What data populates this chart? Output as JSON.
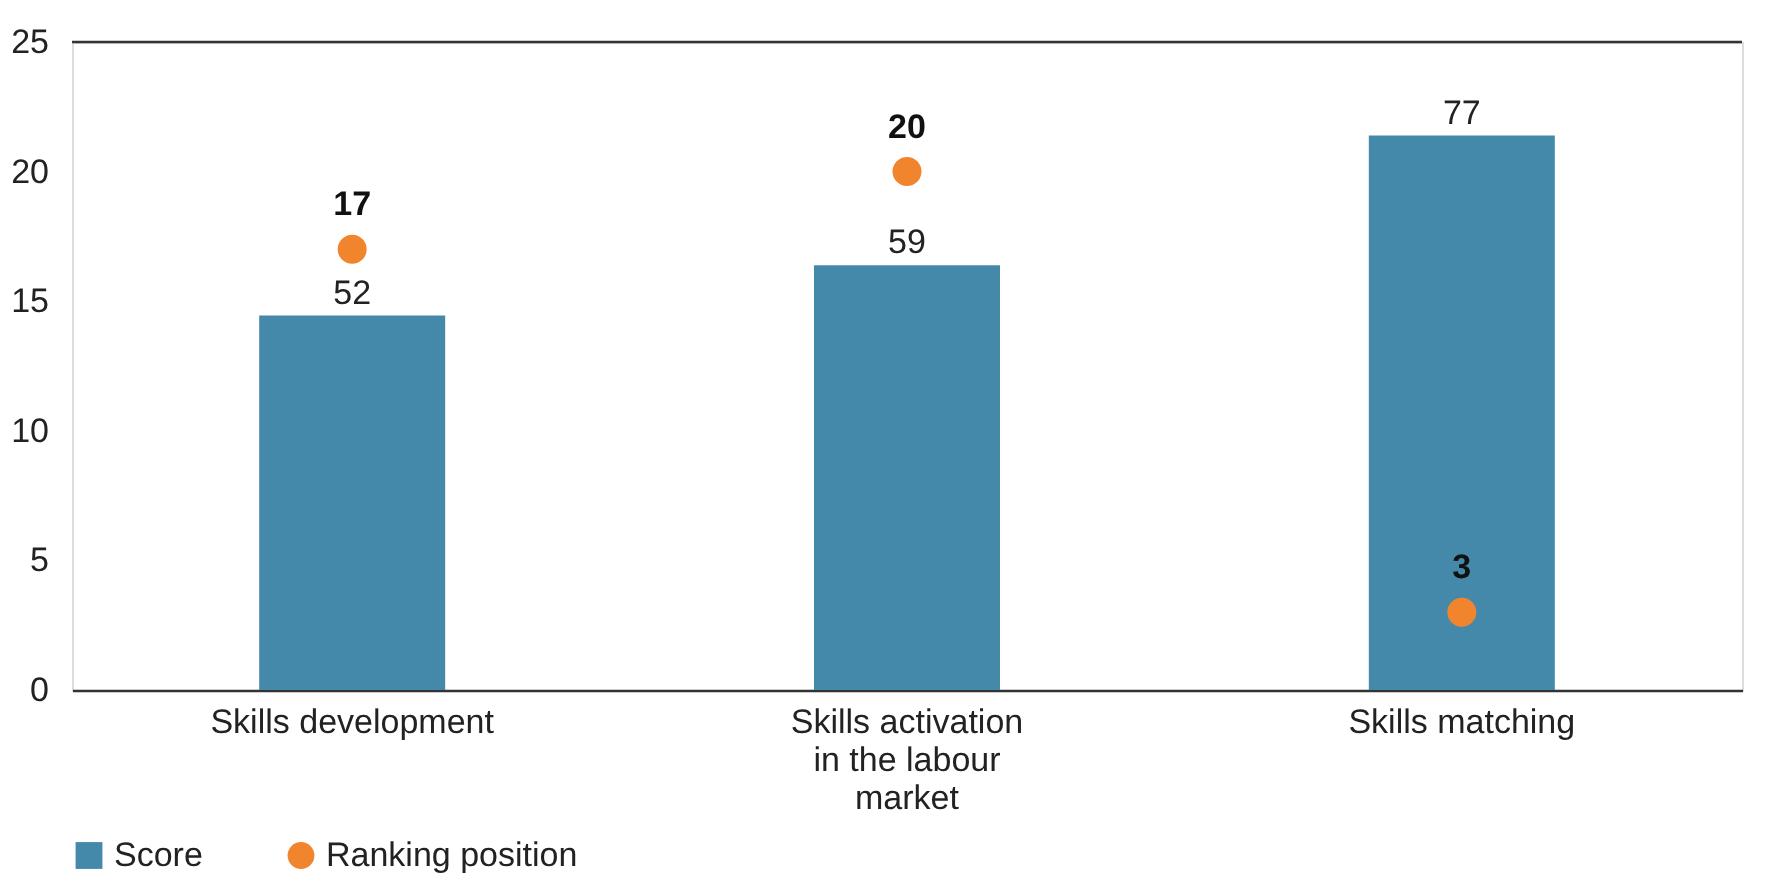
{
  "chart_data": {
    "type": "bar",
    "categories": [
      "Skills development",
      "Skills activation in the labour market",
      "Skills matching"
    ],
    "series": [
      {
        "name": "Score",
        "color": "#4589aa",
        "values": [
          52,
          59,
          77
        ],
        "axis": "y2"
      },
      {
        "name": "Ranking position",
        "type": "scatter",
        "color": "#f0852d",
        "values": [
          17,
          20,
          3
        ],
        "marker": "circle"
      }
    ],
    "data_labels": true,
    "ylim": [
      0,
      25
    ],
    "yticks": [
      0,
      5,
      10,
      15,
      20,
      25
    ],
    "y2lim": [
      0,
      90
    ],
    "grid": false,
    "legend": "bottom left"
  }
}
